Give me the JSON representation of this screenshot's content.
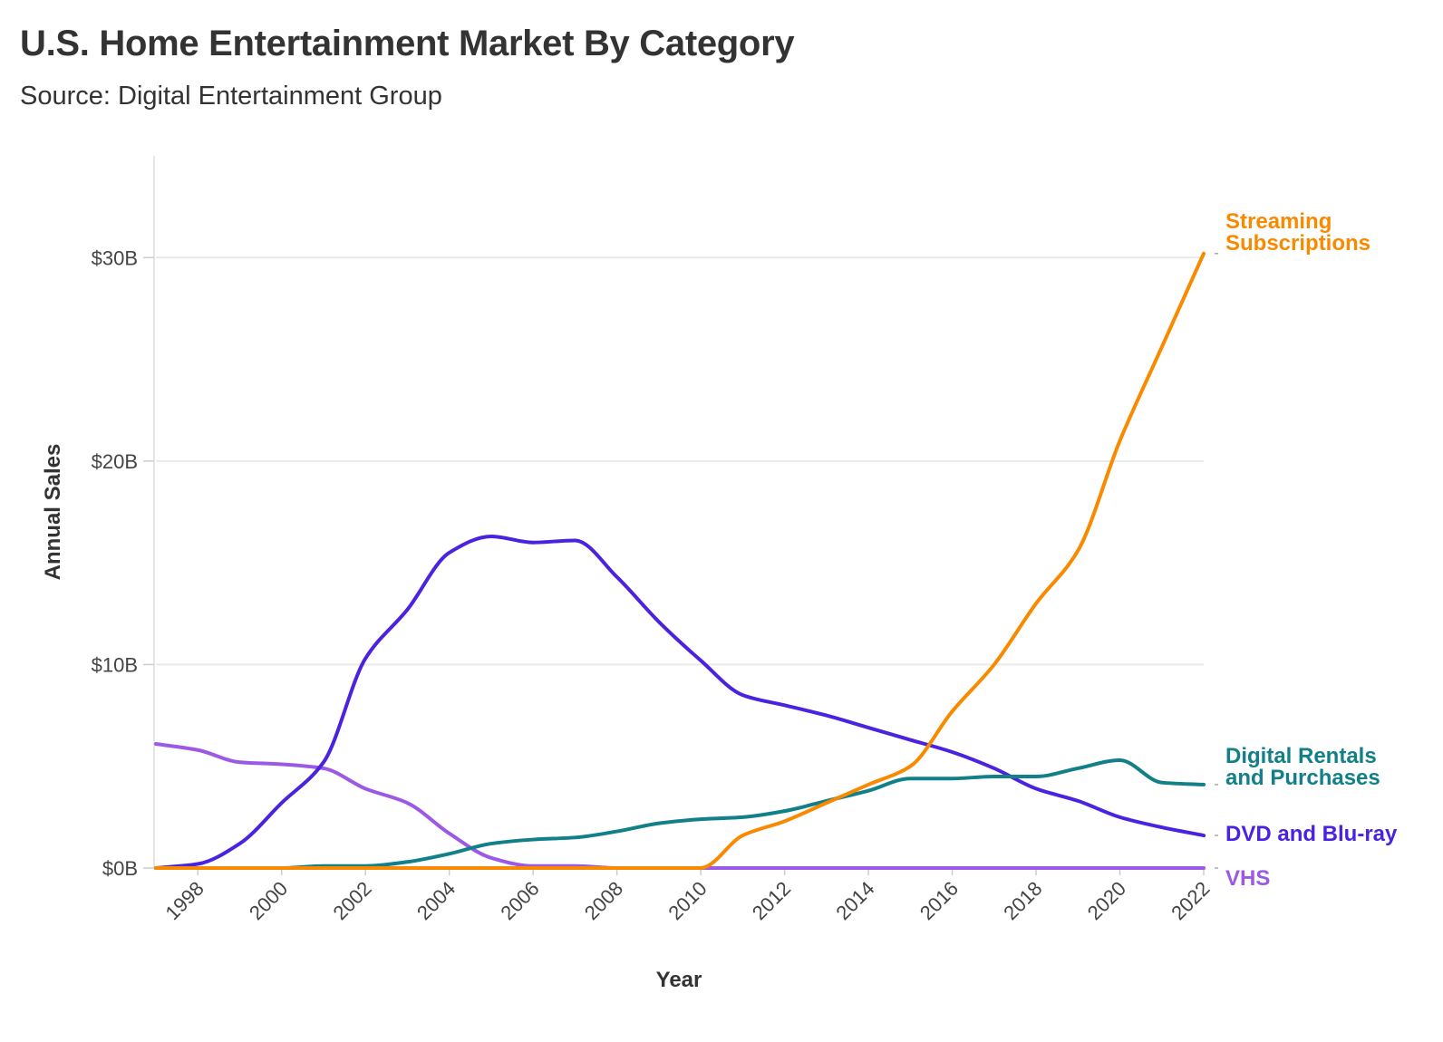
{
  "chart_data": {
    "type": "line",
    "title": "U.S. Home Entertainment Market By Category",
    "subtitle": "Source: Digital Entertainment Group",
    "xlabel": "Year",
    "ylabel": "Annual Sales",
    "xlim": [
      1997,
      2022
    ],
    "ylim": [
      0,
      35
    ],
    "x_ticks": [
      1998,
      2000,
      2002,
      2004,
      2006,
      2008,
      2010,
      2012,
      2014,
      2016,
      2018,
      2020,
      2022
    ],
    "y_ticks": [
      {
        "value": 0,
        "label": "$0B"
      },
      {
        "value": 10,
        "label": "$10B"
      },
      {
        "value": 20,
        "label": "$20B"
      },
      {
        "value": 30,
        "label": "$30B"
      }
    ],
    "grid": true,
    "x": [
      1997,
      1998,
      1999,
      2000,
      2001,
      2002,
      2003,
      2004,
      2005,
      2006,
      2007,
      2008,
      2009,
      2010,
      2011,
      2012,
      2013,
      2014,
      2015,
      2016,
      2017,
      2018,
      2019,
      2020,
      2021,
      2022
    ],
    "series": [
      {
        "name": "VHS",
        "label_lines": [
          "VHS"
        ],
        "color": "#9b59e6",
        "values": [
          6.1,
          5.8,
          5.2,
          5.1,
          4.9,
          3.9,
          3.2,
          1.7,
          0.5,
          0.1,
          0.1,
          0,
          0,
          0,
          0,
          0,
          0,
          0,
          0,
          0,
          0,
          0,
          0,
          0,
          0,
          0
        ]
      },
      {
        "name": "DVD and Blu-ray",
        "label_lines": [
          "DVD and Blu-ray"
        ],
        "color": "#4a22e0",
        "values": [
          0,
          0.2,
          1.2,
          3.2,
          5.2,
          10.3,
          12.7,
          15.5,
          16.3,
          16.0,
          16.1,
          14.3,
          12.1,
          10.2,
          8.5,
          8.0,
          7.5,
          6.9,
          6.3,
          5.7,
          4.9,
          3.9,
          3.3,
          2.5,
          2.0,
          1.6
        ]
      },
      {
        "name": "Digital Rentals and Purchases",
        "label_lines": [
          "Digital Rentals",
          "and Purchases"
        ],
        "color": "#118088",
        "values": [
          0,
          0,
          0,
          0,
          0.1,
          0.1,
          0.3,
          0.7,
          1.2,
          1.4,
          1.5,
          1.8,
          2.2,
          2.4,
          2.5,
          2.8,
          3.3,
          3.8,
          4.4,
          4.4,
          4.5,
          4.5,
          4.9,
          5.3,
          4.2,
          4.1
        ]
      },
      {
        "name": "Streaming Subscriptions",
        "label_lines": [
          "Streaming",
          "Subscriptions"
        ],
        "color": "#f98a00",
        "values": [
          0,
          0,
          0,
          0,
          0,
          0,
          0,
          0,
          0,
          0,
          0,
          0,
          0,
          0,
          1.6,
          2.3,
          3.2,
          4.1,
          5.0,
          7.7,
          10.0,
          13.0,
          15.6,
          21.0,
          25.6,
          30.2
        ]
      }
    ]
  }
}
